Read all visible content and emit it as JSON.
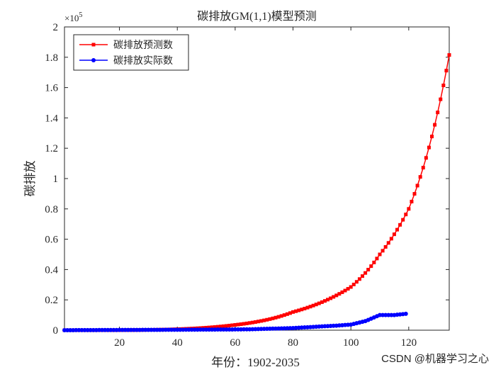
{
  "chart_data": {
    "type": "line",
    "title": "碳排放GM(1,1)模型预测",
    "xlabel": "年份：1902-2035",
    "ylabel": "碳排放",
    "y_exponent_label": "×10",
    "y_exponent_power": "5",
    "xlim": [
      1,
      134
    ],
    "ylim": [
      0,
      2
    ],
    "x_ticks": [
      20,
      40,
      60,
      80,
      100,
      120
    ],
    "x_tick_labels": [
      "20",
      "40",
      "60",
      "80",
      "100",
      "120"
    ],
    "y_ticks": [
      0,
      0.2,
      0.4,
      0.6,
      0.8,
      1,
      1.2,
      1.4,
      1.6,
      1.8,
      2
    ],
    "y_tick_labels": [
      "0",
      "0.2",
      "0.4",
      "0.6",
      "0.8",
      "1",
      "1.2",
      "1.4",
      "1.6",
      "1.8",
      "2"
    ],
    "y_units": "×10^5",
    "legend_position": "top-left",
    "series": [
      {
        "name": "碳排放预测数",
        "color": "#ff0000",
        "marker": "square",
        "x_start": 1,
        "x_end": 134,
        "model": "exponential",
        "anchors": [
          [
            1,
            0.0
          ],
          [
            60,
            0.035
          ],
          [
            80,
            0.12
          ],
          [
            100,
            0.285
          ],
          [
            110,
            0.5
          ],
          [
            120,
            0.8
          ],
          [
            134,
            1.815
          ]
        ]
      },
      {
        "name": "碳排放实际数",
        "color": "#0000ff",
        "marker": "circle",
        "x_start": 1,
        "x_end": 119,
        "model": "piecewise",
        "anchors": [
          [
            1,
            0.0
          ],
          [
            40,
            0.003
          ],
          [
            60,
            0.005
          ],
          [
            65,
            0.006
          ],
          [
            80,
            0.014
          ],
          [
            90,
            0.025
          ],
          [
            95,
            0.03
          ],
          [
            100,
            0.037
          ],
          [
            105,
            0.06
          ],
          [
            110,
            0.1
          ],
          [
            115,
            0.1
          ],
          [
            119,
            0.108
          ]
        ]
      }
    ]
  },
  "watermark": "CSDN @机器学习之心"
}
